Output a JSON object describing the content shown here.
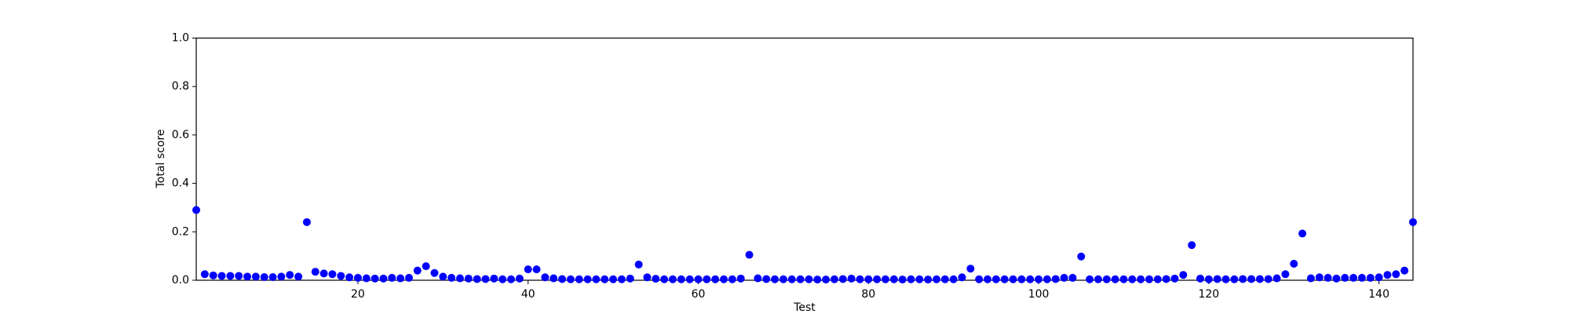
{
  "chart_data": {
    "type": "scatter",
    "xlabel": "Test",
    "ylabel": "Total score",
    "color": "#0000ff",
    "x": [
      1,
      2,
      3,
      4,
      5,
      6,
      7,
      8,
      9,
      10,
      11,
      12,
      13,
      14,
      15,
      16,
      17,
      18,
      19,
      20,
      21,
      22,
      23,
      24,
      25,
      26,
      27,
      28,
      29,
      30,
      31,
      32,
      33,
      34,
      35,
      36,
      37,
      38,
      39,
      40,
      41,
      42,
      43,
      44,
      45,
      46,
      47,
      48,
      49,
      50,
      51,
      52,
      53,
      54,
      55,
      56,
      57,
      58,
      59,
      60,
      61,
      62,
      63,
      64,
      65,
      66,
      67,
      68,
      69,
      70,
      71,
      72,
      73,
      74,
      75,
      76,
      77,
      78,
      79,
      80,
      81,
      82,
      83,
      84,
      85,
      86,
      87,
      88,
      89,
      90,
      91,
      92,
      93,
      94,
      95,
      96,
      97,
      98,
      99,
      100,
      101,
      102,
      103,
      104,
      105,
      106,
      107,
      108,
      109,
      110,
      111,
      112,
      113,
      114,
      115,
      116,
      117,
      118,
      119,
      120,
      121,
      122,
      123,
      124,
      125,
      126,
      127,
      128,
      129,
      130,
      131,
      132,
      133,
      134,
      135,
      136,
      137,
      138,
      139,
      140,
      141,
      142,
      143,
      144
    ],
    "values": [
      0.29,
      0.025,
      0.02,
      0.018,
      0.018,
      0.018,
      0.015,
      0.015,
      0.013,
      0.013,
      0.015,
      0.022,
      0.015,
      0.24,
      0.035,
      0.028,
      0.025,
      0.018,
      0.012,
      0.01,
      0.008,
      0.007,
      0.007,
      0.01,
      0.008,
      0.01,
      0.04,
      0.058,
      0.03,
      0.015,
      0.01,
      0.008,
      0.007,
      0.005,
      0.005,
      0.007,
      0.004,
      0.004,
      0.007,
      0.045,
      0.045,
      0.012,
      0.008,
      0.005,
      0.004,
      0.004,
      0.004,
      0.004,
      0.004,
      0.004,
      0.004,
      0.007,
      0.065,
      0.012,
      0.006,
      0.004,
      0.004,
      0.004,
      0.004,
      0.004,
      0.004,
      0.004,
      0.004,
      0.004,
      0.007,
      0.105,
      0.008,
      0.005,
      0.004,
      0.004,
      0.004,
      0.004,
      0.004,
      0.003,
      0.003,
      0.004,
      0.005,
      0.007,
      0.004,
      0.004,
      0.004,
      0.004,
      0.004,
      0.003,
      0.004,
      0.004,
      0.003,
      0.004,
      0.004,
      0.004,
      0.012,
      0.048,
      0.004,
      0.004,
      0.004,
      0.004,
      0.004,
      0.004,
      0.004,
      0.004,
      0.004,
      0.005,
      0.01,
      0.01,
      0.098,
      0.004,
      0.004,
      0.004,
      0.004,
      0.004,
      0.004,
      0.004,
      0.004,
      0.004,
      0.005,
      0.007,
      0.022,
      0.145,
      0.007,
      0.004,
      0.005,
      0.004,
      0.004,
      0.005,
      0.005,
      0.005,
      0.005,
      0.008,
      0.025,
      0.068,
      0.193,
      0.008,
      0.012,
      0.01,
      0.007,
      0.01,
      0.01,
      0.01,
      0.01,
      0.012,
      0.022,
      0.025,
      0.04,
      0.24
    ],
    "xlim": [
      1,
      144
    ],
    "xticks": [
      20,
      40,
      60,
      80,
      100,
      120,
      140
    ],
    "ylim": [
      0,
      1
    ],
    "yticks": [
      {
        "value": 0,
        "label": "0.0"
      },
      0.2,
      0.4,
      0.6,
      0.8,
      {
        "value": 1,
        "label": "1.0"
      }
    ]
  }
}
